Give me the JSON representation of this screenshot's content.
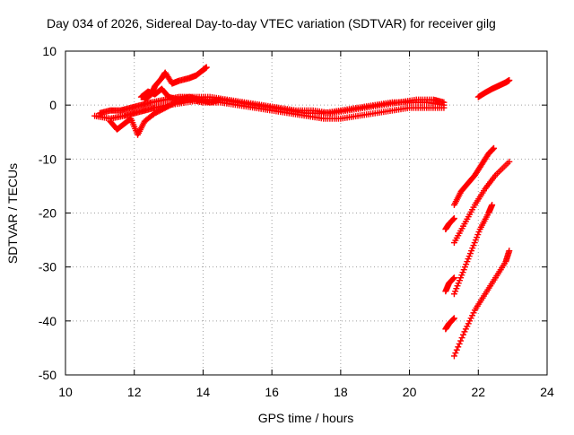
{
  "colors": {
    "series": "#ff0000",
    "grid": "#a0a0a0",
    "axis": "#000000",
    "background": "#ffffff"
  },
  "chart_data": {
    "type": "scatter",
    "marker": "plus",
    "title": "Day 034 of 2026, Sidereal Day-to-day VTEC variation (SDTVAR) for receiver gilg",
    "xlabel": "GPS time / hours",
    "ylabel": "SDTVAR / TECUs",
    "xlim": [
      10,
      24
    ],
    "ylim": [
      -50,
      10
    ],
    "xticks": [
      10,
      12,
      14,
      16,
      18,
      20,
      22,
      24
    ],
    "yticks": [
      10,
      0,
      -10,
      -20,
      -30,
      -40,
      -50
    ],
    "xtick_labels": [
      "10",
      "12",
      "14",
      "16",
      "18",
      "20",
      "22",
      "24"
    ],
    "ytick_labels": [
      "10",
      "0",
      "-10",
      "-20",
      "-30",
      "-40",
      "-50"
    ],
    "grid": true,
    "legend": "none",
    "series": [
      {
        "name": "SDTVAR",
        "color": "#ff0000",
        "tracks": [
          {
            "x": [
              10.85,
              11.3,
              11.7,
              12.0,
              12.3,
              12.6,
              13.0,
              13.5,
              14.0,
              14.5,
              15.0,
              15.5,
              16.0,
              16.5,
              17.0,
              17.5,
              18.0,
              18.5,
              19.0,
              19.5,
              20.0,
              20.5,
              21.0
            ],
            "y": [
              -2,
              -2.5,
              -2.0,
              -1.5,
              -1.0,
              -0.5,
              0.0,
              0.5,
              1.0,
              1.0,
              0.5,
              0.0,
              -0.5,
              -1.0,
              -1.5,
              -1.5,
              -1.0,
              -0.5,
              0.0,
              0.5,
              0.5,
              0.5,
              0.0
            ]
          },
          {
            "x": [
              11.0,
              11.3,
              11.6,
              11.9,
              12.2,
              12.5,
              12.9,
              13.3,
              13.7,
              14.2,
              14.7,
              15.2,
              15.7,
              16.2,
              16.7,
              17.2,
              17.7,
              18.2,
              18.7,
              19.2,
              19.7,
              20.2,
              20.7,
              21.0
            ],
            "y": [
              -1.5,
              -1.0,
              -1.0,
              -0.5,
              0.0,
              0.5,
              1.0,
              1.5,
              1.5,
              1.5,
              1.0,
              0.5,
              0.0,
              -0.5,
              -1.0,
              -1.0,
              -1.5,
              -1.0,
              -0.5,
              0.0,
              0.5,
              1.0,
              1.0,
              0.5
            ]
          },
          {
            "x": [
              11.3,
              11.5,
              11.7,
              11.9,
              12.1,
              12.3,
              12.6,
              12.9,
              13.2,
              13.6,
              14.0,
              14.5,
              15.0,
              15.5,
              16.0,
              16.5,
              17.0,
              17.5,
              18.0,
              18.5,
              19.0,
              19.5,
              20.0,
              20.5,
              21.0
            ],
            "y": [
              -3.0,
              -4.5,
              -3.5,
              -2.5,
              -5.5,
              -3.0,
              -1.5,
              -0.5,
              0.5,
              1.0,
              0.5,
              0.5,
              0.0,
              -0.5,
              -1.0,
              -1.5,
              -2.0,
              -2.5,
              -2.5,
              -2.0,
              -1.5,
              -1.0,
              -0.5,
              -0.5,
              -0.5
            ]
          },
          {
            "x": [
              12.3,
              12.5,
              12.6,
              12.8,
              12.9,
              13.1,
              13.3,
              13.6,
              13.8,
              14.0,
              14.1
            ],
            "y": [
              1.0,
              2.0,
              3.5,
              5.0,
              6.0,
              4.0,
              4.5,
              5.0,
              5.5,
              6.5,
              7.0
            ]
          },
          {
            "x": [
              12.2,
              12.4,
              12.6,
              12.8,
              13.0,
              13.3,
              13.6,
              13.9,
              14.2,
              14.5
            ],
            "y": [
              1.5,
              2.5,
              2.0,
              3.0,
              1.5,
              1.0,
              1.5,
              1.0,
              0.5,
              1.0
            ]
          },
          {
            "x": [
              22.0,
              22.2,
              22.4,
              22.6,
              22.8,
              22.9
            ],
            "y": [
              1.5,
              2.3,
              3.0,
              3.6,
              4.2,
              4.6
            ]
          },
          {
            "x": [
              21.3,
              21.5,
              21.7,
              21.9,
              22.1,
              22.3,
              22.45
            ],
            "y": [
              -18.5,
              -16.0,
              -14.5,
              -13.0,
              -11.0,
              -9.0,
              -8.0
            ]
          },
          {
            "x": [
              21.3,
              21.6,
              21.9,
              22.2,
              22.5,
              22.9
            ],
            "y": [
              -25.5,
              -22.0,
              -18.5,
              -15.5,
              -13.0,
              -10.5
            ]
          },
          {
            "x": [
              21.3,
              21.55,
              21.8,
              22.05,
              22.3,
              22.4
            ],
            "y": [
              -35.0,
              -31.0,
              -27.0,
              -23.0,
              -20.0,
              -18.5
            ]
          },
          {
            "x": [
              21.3,
              21.6,
              21.9,
              22.2,
              22.5,
              22.8,
              22.9
            ],
            "y": [
              -46.5,
              -42.0,
              -38.0,
              -35.0,
              -32.0,
              -29.0,
              -27.0
            ]
          },
          {
            "x": [
              21.05,
              21.15,
              21.3
            ],
            "y": [
              -23.0,
              -22.0,
              -21.0
            ]
          },
          {
            "x": [
              21.05,
              21.15,
              21.3
            ],
            "y": [
              -34.5,
              -33.0,
              -32.0
            ]
          },
          {
            "x": [
              21.05,
              21.15,
              21.3
            ],
            "y": [
              -41.5,
              -40.5,
              -39.5
            ]
          }
        ]
      }
    ]
  }
}
